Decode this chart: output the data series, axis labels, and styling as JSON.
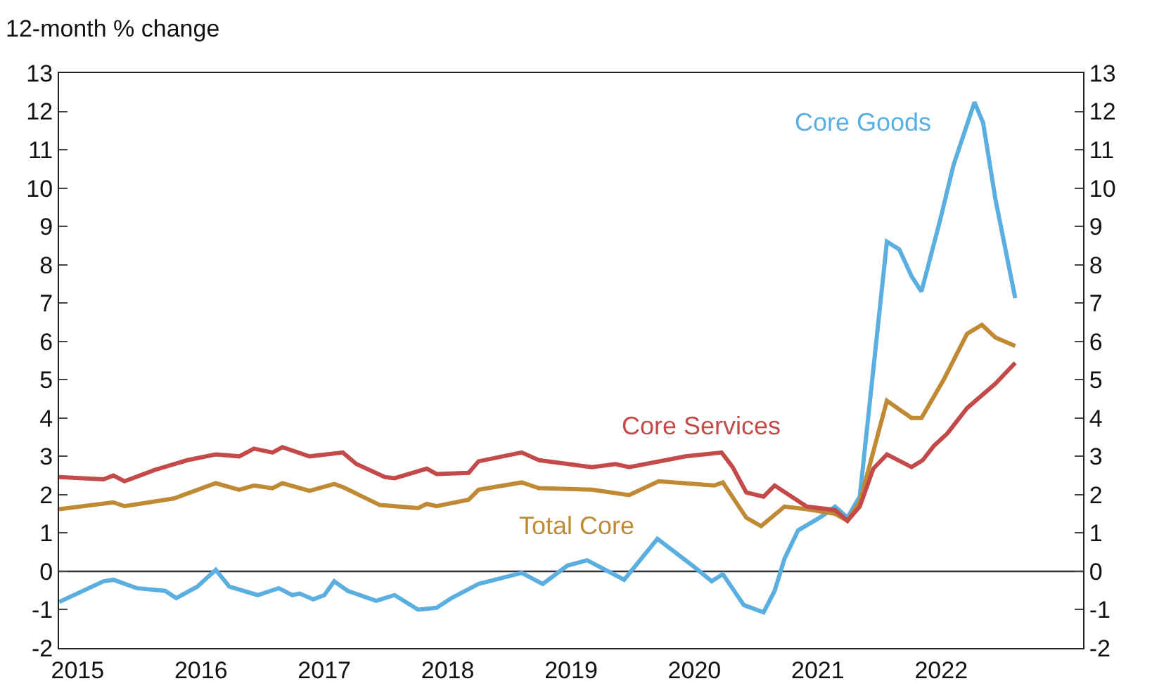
{
  "chart_data": {
    "type": "line",
    "ylabel": "12-month % change",
    "xlim": [
      2014.85,
      2023.15
    ],
    "xticks": [
      2015,
      2016,
      2017,
      2018,
      2019,
      2020,
      2021,
      2022
    ],
    "ylim": [
      -2,
      13
    ],
    "yticks": [
      -2,
      -1,
      0,
      1,
      2,
      3,
      4,
      5,
      6,
      7,
      8,
      9,
      10,
      11,
      12,
      13
    ],
    "y2lim": [
      -2,
      13
    ],
    "y2ticks": [
      -2,
      -1,
      0,
      1,
      2,
      3,
      4,
      5,
      6,
      7,
      8,
      9,
      10,
      11,
      12,
      13
    ],
    "grid": false,
    "legend": false,
    "marker": "none",
    "line_style": "solid",
    "ref_lines": [
      {
        "axis": "y",
        "value": 0,
        "color": "#333333"
      }
    ],
    "series": [
      {
        "name": "Core Goods",
        "color": "#5aafe0",
        "x": [
          2014.85,
          2015.21,
          2015.29,
          2015.48,
          2015.71,
          2015.8,
          2015.97,
          2016.12,
          2016.23,
          2016.46,
          2016.63,
          2016.74,
          2016.8,
          2016.91,
          2017.0,
          2017.08,
          2017.19,
          2017.42,
          2017.57,
          2017.76,
          2017.91,
          2018.03,
          2018.25,
          2018.6,
          2018.77,
          2018.97,
          2019.13,
          2019.43,
          2019.7,
          2020.0,
          2020.14,
          2020.23,
          2020.4,
          2020.56,
          2020.65,
          2020.73,
          2020.84,
          2021.03,
          2021.14,
          2021.24,
          2021.34,
          2021.56,
          2021.66,
          2021.76,
          2021.84,
          2021.99,
          2022.1,
          2022.27,
          2022.34,
          2022.44,
          2022.6
        ],
        "values": [
          -0.8,
          -0.26,
          -0.22,
          -0.44,
          -0.51,
          -0.7,
          -0.4,
          0.04,
          -0.4,
          -0.62,
          -0.44,
          -0.62,
          -0.58,
          -0.73,
          -0.62,
          -0.26,
          -0.51,
          -0.77,
          -0.62,
          -1.0,
          -0.95,
          -0.7,
          -0.33,
          -0.04,
          -0.33,
          0.15,
          0.29,
          -0.22,
          0.85,
          0.11,
          -0.26,
          -0.07,
          -0.88,
          -1.07,
          -0.51,
          0.33,
          1.07,
          1.43,
          1.69,
          1.4,
          1.95,
          8.6,
          8.4,
          7.7,
          7.3,
          9.15,
          10.6,
          12.24,
          11.7,
          9.7,
          7.13
        ]
      },
      {
        "name": "Total Core",
        "color": "#bf8a33",
        "x": [
          2014.85,
          2015.29,
          2015.38,
          2015.78,
          2016.12,
          2016.31,
          2016.43,
          2016.58,
          2016.66,
          2016.88,
          2017.08,
          2017.15,
          2017.45,
          2017.76,
          2017.83,
          2017.91,
          2018.17,
          2018.25,
          2018.6,
          2018.74,
          2019.17,
          2019.47,
          2019.71,
          2020.16,
          2020.23,
          2020.42,
          2020.54,
          2020.73,
          2020.91,
          2021.14,
          2021.24,
          2021.34,
          2021.56,
          2021.76,
          2021.84,
          2022.02,
          2022.21,
          2022.33,
          2022.44,
          2022.6
        ],
        "values": [
          1.62,
          1.8,
          1.7,
          1.9,
          2.3,
          2.13,
          2.24,
          2.17,
          2.3,
          2.1,
          2.28,
          2.2,
          1.73,
          1.65,
          1.76,
          1.7,
          1.87,
          2.13,
          2.32,
          2.17,
          2.13,
          1.99,
          2.35,
          2.24,
          2.32,
          1.4,
          1.18,
          1.69,
          1.62,
          1.5,
          1.32,
          1.8,
          4.45,
          4.0,
          4.0,
          5.0,
          6.2,
          6.43,
          6.1,
          5.88
        ]
      },
      {
        "name": "Core Services",
        "color": "#c44a4a",
        "x": [
          2014.85,
          2015.21,
          2015.29,
          2015.38,
          2015.63,
          2015.89,
          2016.12,
          2016.31,
          2016.43,
          2016.58,
          2016.66,
          2016.88,
          2017.15,
          2017.26,
          2017.49,
          2017.57,
          2017.83,
          2017.91,
          2018.17,
          2018.25,
          2018.6,
          2018.74,
          2019.17,
          2019.36,
          2019.47,
          2019.93,
          2020.22,
          2020.31,
          2020.42,
          2020.56,
          2020.65,
          2020.91,
          2021.14,
          2021.24,
          2021.34,
          2021.45,
          2021.56,
          2021.76,
          2021.85,
          2021.94,
          2022.05,
          2022.21,
          2022.44,
          2022.6
        ],
        "values": [
          2.46,
          2.4,
          2.5,
          2.35,
          2.65,
          2.9,
          3.05,
          3.0,
          3.2,
          3.1,
          3.24,
          3.0,
          3.1,
          2.8,
          2.46,
          2.43,
          2.68,
          2.54,
          2.57,
          2.87,
          3.1,
          2.9,
          2.72,
          2.8,
          2.72,
          3.0,
          3.1,
          2.72,
          2.06,
          1.95,
          2.24,
          1.69,
          1.6,
          1.32,
          1.69,
          2.68,
          3.05,
          2.72,
          2.9,
          3.27,
          3.6,
          4.26,
          4.9,
          5.44
        ]
      }
    ]
  }
}
